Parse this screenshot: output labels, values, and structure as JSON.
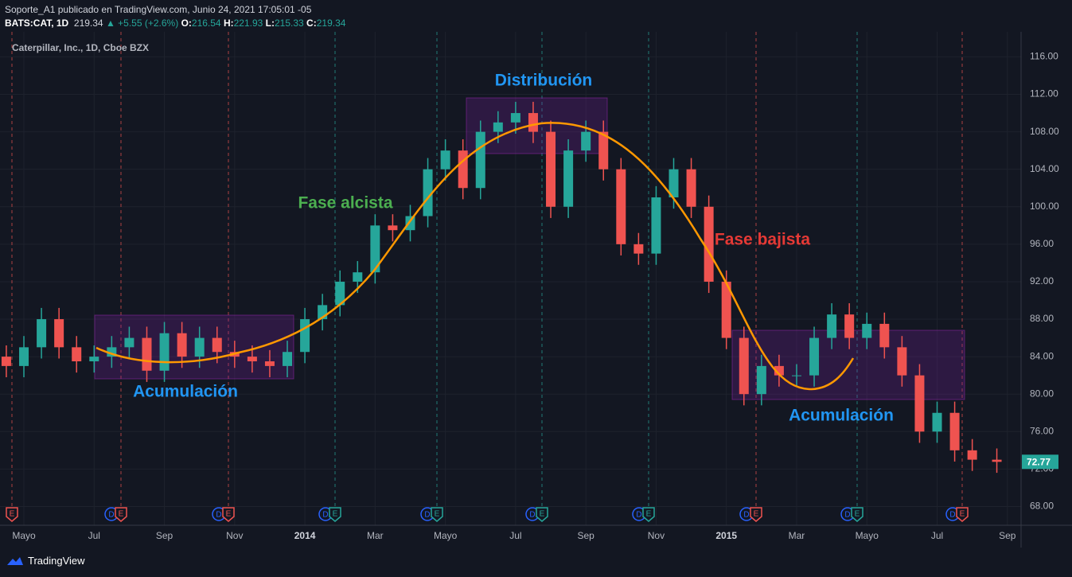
{
  "header": {
    "line1": "Soporte_A1 publicado en TradingView.com, Junio 24, 2021 17:05:01 -05",
    "symbol": "BATS:CAT, 1D",
    "price": "219.34",
    "change": "▲ +5.55 (+2.6%)",
    "o_label": "O:",
    "o": "216.54",
    "h_label": "H:",
    "h": "221.93",
    "l_label": "L:",
    "l": "215.33",
    "c_label": "C:",
    "c": "219.34"
  },
  "chart_data": {
    "type": "candlestick",
    "title": "Caterpillar, Inc., 1D, Cboe BZX",
    "x": [
      -0.5,
      0,
      0.5,
      1,
      1.5,
      2,
      2.5,
      3,
      3.5,
      4,
      4.5,
      5,
      5.5,
      6,
      6.5,
      7,
      7.5,
      8,
      8.5,
      9,
      9.5,
      10,
      10.5,
      11,
      11.5,
      12,
      12.5,
      13,
      13.5,
      14,
      14.5,
      15,
      15.5,
      16,
      16.5,
      17,
      17.5,
      18,
      18.5,
      19,
      19.5,
      20,
      20.5,
      21,
      21.5,
      22,
      22.5,
      23,
      23.5,
      24,
      24.5,
      25,
      25.5,
      26,
      26.5,
      27,
      27.7
    ],
    "open": [
      84,
      83,
      85,
      88,
      85,
      83.5,
      84,
      85,
      86,
      82.5,
      86.5,
      84,
      86,
      84.5,
      84,
      83.5,
      83,
      84.5,
      88,
      89.5,
      92,
      93,
      98,
      97.5,
      99,
      104,
      106,
      102,
      108,
      109,
      110,
      108,
      100,
      106,
      108,
      104,
      96,
      95,
      101,
      104,
      100,
      92,
      86,
      80,
      83,
      82,
      82,
      86,
      88.5,
      86,
      87.5,
      85,
      82,
      76,
      78,
      74,
      73
    ],
    "high": [
      85.2,
      86.2,
      89.2,
      89.2,
      86.2,
      85.2,
      86.2,
      87.2,
      87.2,
      87.7,
      87.7,
      87.2,
      87.2,
      85.7,
      85.2,
      84.7,
      85.7,
      89.2,
      90.7,
      93.2,
      94.2,
      99.2,
      99.2,
      100.2,
      105.2,
      107.2,
      107.2,
      109.2,
      110.2,
      111.2,
      111.2,
      109.2,
      107.2,
      109.2,
      109.2,
      105.2,
      97.2,
      102.2,
      105.2,
      105.2,
      101.2,
      93.2,
      87.2,
      84.2,
      84.2,
      83.2,
      87.2,
      89.7,
      89.7,
      88.7,
      88.7,
      86.2,
      83.2,
      79.2,
      79.2,
      75.2,
      74.2
    ],
    "low": [
      81.8,
      81.8,
      83.8,
      83.8,
      82.3,
      82.3,
      82.8,
      83.8,
      81.3,
      81.3,
      82.8,
      82.8,
      83.3,
      82.8,
      82.3,
      81.8,
      81.8,
      83.3,
      86.8,
      88.3,
      90.8,
      91.8,
      96.3,
      96.3,
      97.8,
      102.8,
      100.8,
      100.8,
      106.8,
      107.8,
      106.8,
      98.8,
      98.8,
      104.8,
      102.8,
      94.8,
      93.8,
      93.8,
      99.8,
      98.8,
      90.8,
      84.8,
      78.8,
      78.8,
      80.8,
      80.8,
      80.8,
      84.8,
      84.8,
      84.8,
      83.8,
      80.8,
      74.8,
      74.8,
      72.8,
      71.8,
      71.6
    ],
    "close": [
      83,
      85,
      88,
      85,
      83.5,
      84,
      85,
      86,
      82.5,
      86.5,
      84,
      86,
      84.5,
      84,
      83.5,
      83,
      84.5,
      88,
      89.5,
      92,
      93,
      98,
      97.5,
      99,
      104,
      106,
      102,
      108,
      109,
      110,
      108,
      100,
      106,
      108,
      104,
      96,
      95,
      101,
      104,
      100,
      92,
      86,
      80,
      83,
      82,
      82,
      86,
      88.5,
      86,
      87.5,
      85,
      82,
      76,
      78,
      74,
      73,
      72.77
    ],
    "up_color": "#26a69a",
    "down_color": "#ef5350",
    "xlim": [
      -0.68,
      28.39
    ],
    "ylim": [
      66,
      118.5
    ],
    "xticks": [
      {
        "value": 0,
        "label": "Mayo"
      },
      {
        "value": 2,
        "label": "Jul"
      },
      {
        "value": 4,
        "label": "Sep"
      },
      {
        "value": 6,
        "label": "Nov"
      },
      {
        "value": 8,
        "label": "2014"
      },
      {
        "value": 10,
        "label": "Mar"
      },
      {
        "value": 12,
        "label": "Mayo"
      },
      {
        "value": 14,
        "label": "Jul"
      },
      {
        "value": 16,
        "label": "Sep"
      },
      {
        "value": 18,
        "label": "Nov"
      },
      {
        "value": 20,
        "label": "2015"
      },
      {
        "value": 22,
        "label": "Mar"
      },
      {
        "value": 24,
        "label": "Mayo"
      },
      {
        "value": 26,
        "label": "Jul"
      },
      {
        "value": 28,
        "label": "Sep"
      }
    ],
    "yticks": [
      {
        "value": 68,
        "label": "68.00"
      },
      {
        "value": 72,
        "label": "72.00"
      },
      {
        "value": 76,
        "label": "76.00"
      },
      {
        "value": 80,
        "label": "80.00"
      },
      {
        "value": 84,
        "label": "84.00"
      },
      {
        "value": 88,
        "label": "88.00"
      },
      {
        "value": 92,
        "label": "92.00"
      },
      {
        "value": 96,
        "label": "96.00"
      },
      {
        "value": 100,
        "label": "100.00"
      },
      {
        "value": 104,
        "label": "104.00"
      },
      {
        "value": 108,
        "label": "108.00"
      },
      {
        "value": 112,
        "label": "112.00"
      },
      {
        "value": 116,
        "label": "116.00"
      }
    ],
    "grid": true,
    "annotations": [
      "Distribución",
      "Fase alcista",
      "Fase bajista",
      "Acumulación",
      "Acumulación"
    ],
    "earnings_label": "E",
    "dividend_label": "D"
  },
  "footer": {
    "brand": "TradingView"
  }
}
